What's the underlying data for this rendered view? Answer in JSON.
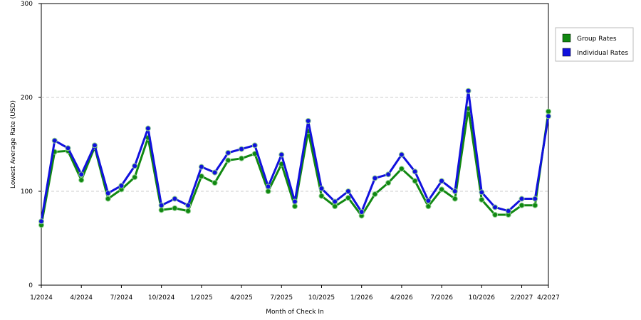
{
  "chart_data": {
    "type": "line",
    "title": "",
    "xlabel": "Month of Check In",
    "ylabel": "Lowest Average Rate (USD)",
    "ylim": [
      0,
      300
    ],
    "yticks": [
      0,
      100,
      200,
      300
    ],
    "grid": "horizontal dashed",
    "legend_position": "right",
    "x_tick_labels": [
      "1/2024",
      "4/2024",
      "7/2024",
      "10/2024",
      "1/2025",
      "4/2025",
      "7/2025",
      "10/2025",
      "1/2026",
      "4/2026",
      "7/2026",
      "10/2026",
      "2/2027",
      "4/2027"
    ],
    "x_tick_index": [
      0,
      3,
      6,
      9,
      12,
      15,
      18,
      21,
      24,
      27,
      30,
      33,
      36,
      38
    ],
    "categories": [
      "1/2024",
      "2/2024",
      "3/2024",
      "4/2024",
      "5/2024",
      "6/2024",
      "7/2024",
      "8/2024",
      "9/2024",
      "10/2024",
      "11/2024",
      "12/2024",
      "1/2025",
      "2/2025",
      "3/2025",
      "4/2025",
      "5/2025",
      "6/2025",
      "7/2025",
      "8/2025",
      "9/2025",
      "10/2025",
      "11/2025",
      "12/2025",
      "1/2026",
      "2/2026",
      "3/2026",
      "4/2026",
      "5/2026",
      "6/2026",
      "7/2026",
      "8/2026",
      "9/2026",
      "10/2026",
      "11/2026",
      "12/2026",
      "2/2027",
      "3/2027",
      "4/2027"
    ],
    "series": [
      {
        "name": "Group Rates",
        "color": "#118811",
        "values": [
          64,
          142,
          143,
          112,
          147,
          92,
          102,
          115,
          157,
          80,
          82,
          79,
          116,
          109,
          133,
          135,
          140,
          100,
          129,
          84,
          164,
          95,
          84,
          93,
          74,
          97,
          109,
          124,
          111,
          84,
          102,
          92,
          188,
          91,
          75,
          75,
          85,
          85,
          185
        ]
      },
      {
        "name": "Individual Rates",
        "color": "#1111dd",
        "values": [
          68,
          154,
          146,
          118,
          149,
          98,
          106,
          127,
          167,
          85,
          92,
          85,
          126,
          120,
          141,
          145,
          149,
          105,
          139,
          89,
          175,
          103,
          89,
          100,
          78,
          114,
          118,
          139,
          121,
          90,
          111,
          100,
          207,
          99,
          83,
          79,
          92,
          92,
          180
        ]
      }
    ]
  }
}
